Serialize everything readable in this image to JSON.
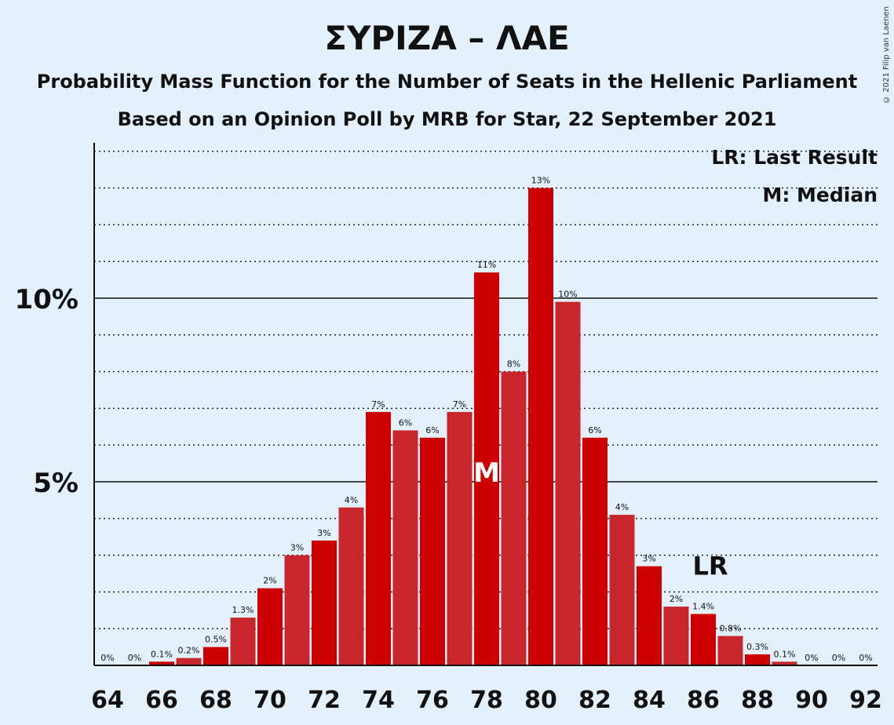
{
  "title": "ΣΥΡΙΖΑ – ΛΑΕ",
  "subtitle1": "Probability Mass Function for the Number of Seats in the Hellenic Parliament",
  "subtitle2": "Based on an Opinion Poll by MRB for Star, 22 September 2021",
  "copyright": "© 2021 Filip van Laenen",
  "legend": {
    "lr": "LR: Last Result",
    "m": "M: Median"
  },
  "markers": {
    "median_label": "M",
    "median_seat": 78,
    "last_result_label": "LR",
    "last_result_seat": 86
  },
  "colors": {
    "background": "#e3f1fd",
    "bar_dark": "#cc0000",
    "bar_light": "#c8262a"
  },
  "chart_data": {
    "type": "bar",
    "seats": [
      64,
      65,
      66,
      67,
      68,
      69,
      70,
      71,
      72,
      73,
      74,
      75,
      76,
      77,
      78,
      79,
      80,
      81,
      82,
      83,
      84,
      85,
      86,
      87,
      88,
      89,
      90,
      91,
      92
    ],
    "values": [
      0,
      0,
      0.1,
      0.2,
      0.5,
      1.3,
      2.1,
      3.0,
      3.4,
      4.3,
      6.9,
      6.4,
      6.2,
      6.9,
      10.7,
      8.0,
      13.0,
      9.9,
      6.2,
      4.1,
      2.7,
      1.6,
      1.4,
      0.8,
      0.3,
      0.1,
      0,
      0,
      0
    ],
    "labels": [
      "0%",
      "0%",
      "0.1%",
      "0.2%",
      "0.5%",
      "1.3%",
      "2%",
      "3%",
      "3%",
      "4%",
      "7%",
      "6%",
      "6%",
      "7%",
      "11%",
      "8%",
      "13%",
      "10%",
      "6%",
      "4%",
      "3%",
      "2%",
      "1.4%",
      "0.8%",
      "0.3%",
      "0.1%",
      "0%",
      "0%",
      "0%"
    ],
    "x_tick_labels": [
      "64",
      "66",
      "68",
      "70",
      "72",
      "74",
      "76",
      "78",
      "80",
      "82",
      "84",
      "86",
      "88",
      "90",
      "92"
    ],
    "y_tick_labels": [
      "5%",
      "10%"
    ],
    "y_ticks": [
      5,
      10
    ],
    "ylim": [
      0,
      14
    ],
    "grid": "dotted every 1%, solid at 5% and 10%"
  }
}
